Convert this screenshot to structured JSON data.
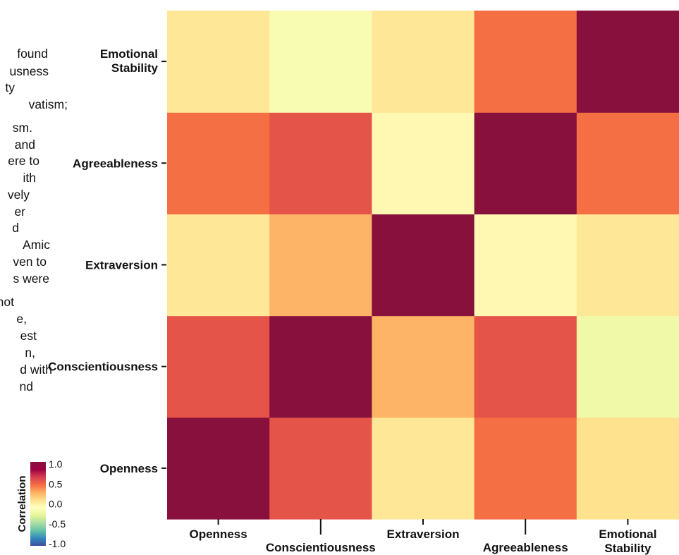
{
  "side_text_fragments": [
    "found",
    "usness",
    "ty",
    "vatism;",
    "sm.",
    "and",
    "ere to",
    "ith",
    "vely",
    "er",
    "d",
    "Amic",
    "ven to",
    "s were",
    "not",
    "e,",
    "est",
    "n,",
    "d with",
    "nd"
  ],
  "chart_data": {
    "type": "heatmap",
    "x_categories": [
      "Openness",
      "Conscientiousness",
      "Extraversion",
      "Agreeableness",
      "Emotional Stability"
    ],
    "y_categories": [
      "Openness",
      "Conscientiousness",
      "Extraversion",
      "Agreeableness",
      "Emotional Stability"
    ],
    "values": [
      [
        1.0,
        0.55,
        0.05,
        0.45,
        0.08
      ],
      [
        0.55,
        1.0,
        0.25,
        0.55,
        -0.2
      ],
      [
        0.05,
        0.25,
        1.0,
        -0.05,
        0.05
      ],
      [
        0.45,
        0.55,
        -0.05,
        1.0,
        0.45
      ],
      [
        0.05,
        -0.15,
        0.05,
        0.45,
        1.0
      ]
    ],
    "colorbar": {
      "label": "Correlation",
      "ticks": [
        "1.0",
        "0.5",
        "0.0",
        "-0.5",
        "-1.0"
      ],
      "range": [
        -1.0,
        1.0
      ],
      "colormap": "Spectral_r"
    },
    "colors": {
      "stops": [
        "#3d4fa1",
        "#3288bd",
        "#66c2a5",
        "#abdda4",
        "#e6f598",
        "#ffffbf",
        "#fee08b",
        "#fdae61",
        "#f46d43",
        "#d53e4f",
        "#9e0142",
        "#87103d"
      ]
    }
  }
}
